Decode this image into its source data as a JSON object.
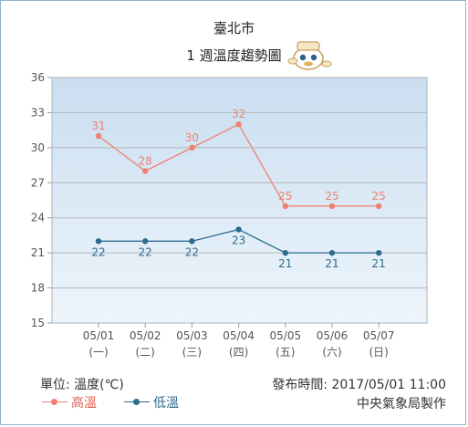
{
  "header": {
    "city": "臺北市",
    "subtitle": "1 週溫度趨勢圖"
  },
  "chart_data": {
    "type": "line",
    "categories": [
      "05/01",
      "05/02",
      "05/03",
      "05/04",
      "05/05",
      "05/06",
      "05/07"
    ],
    "weekdays": [
      "(一)",
      "(二)",
      "(三)",
      "(四)",
      "(五)",
      "(六)",
      "(日)"
    ],
    "yticks": [
      15,
      18,
      21,
      24,
      27,
      30,
      33,
      36
    ],
    "ylim": [
      15,
      36
    ],
    "grid": true,
    "series": [
      {
        "name": "高溫",
        "color": "#f08070",
        "values": [
          31,
          28,
          30,
          32,
          25,
          25,
          25
        ],
        "labels": [
          "31",
          "28",
          "30",
          "32",
          "25",
          "25",
          "25"
        ]
      },
      {
        "name": "低溫",
        "color": "#2e6b8f",
        "values": [
          22,
          22,
          22,
          23,
          21,
          21,
          21
        ],
        "labels": [
          "22",
          "22",
          "22",
          "23",
          "21",
          "21",
          "21"
        ]
      }
    ]
  },
  "footer": {
    "unit": "單位: 溫度(℃)",
    "published": "發布時間: 2017/05/01 11:00",
    "source": "中央氣象局製作"
  },
  "legend": {
    "high_label": "高溫",
    "low_label": "低溫"
  },
  "colors": {
    "plot_top": "#c9def0",
    "plot_bottom": "#eef5fb",
    "grid": "#b5b8ba",
    "border": "#8fb1cf"
  },
  "mascot": {
    "icon": "weather-mascot-icon"
  }
}
